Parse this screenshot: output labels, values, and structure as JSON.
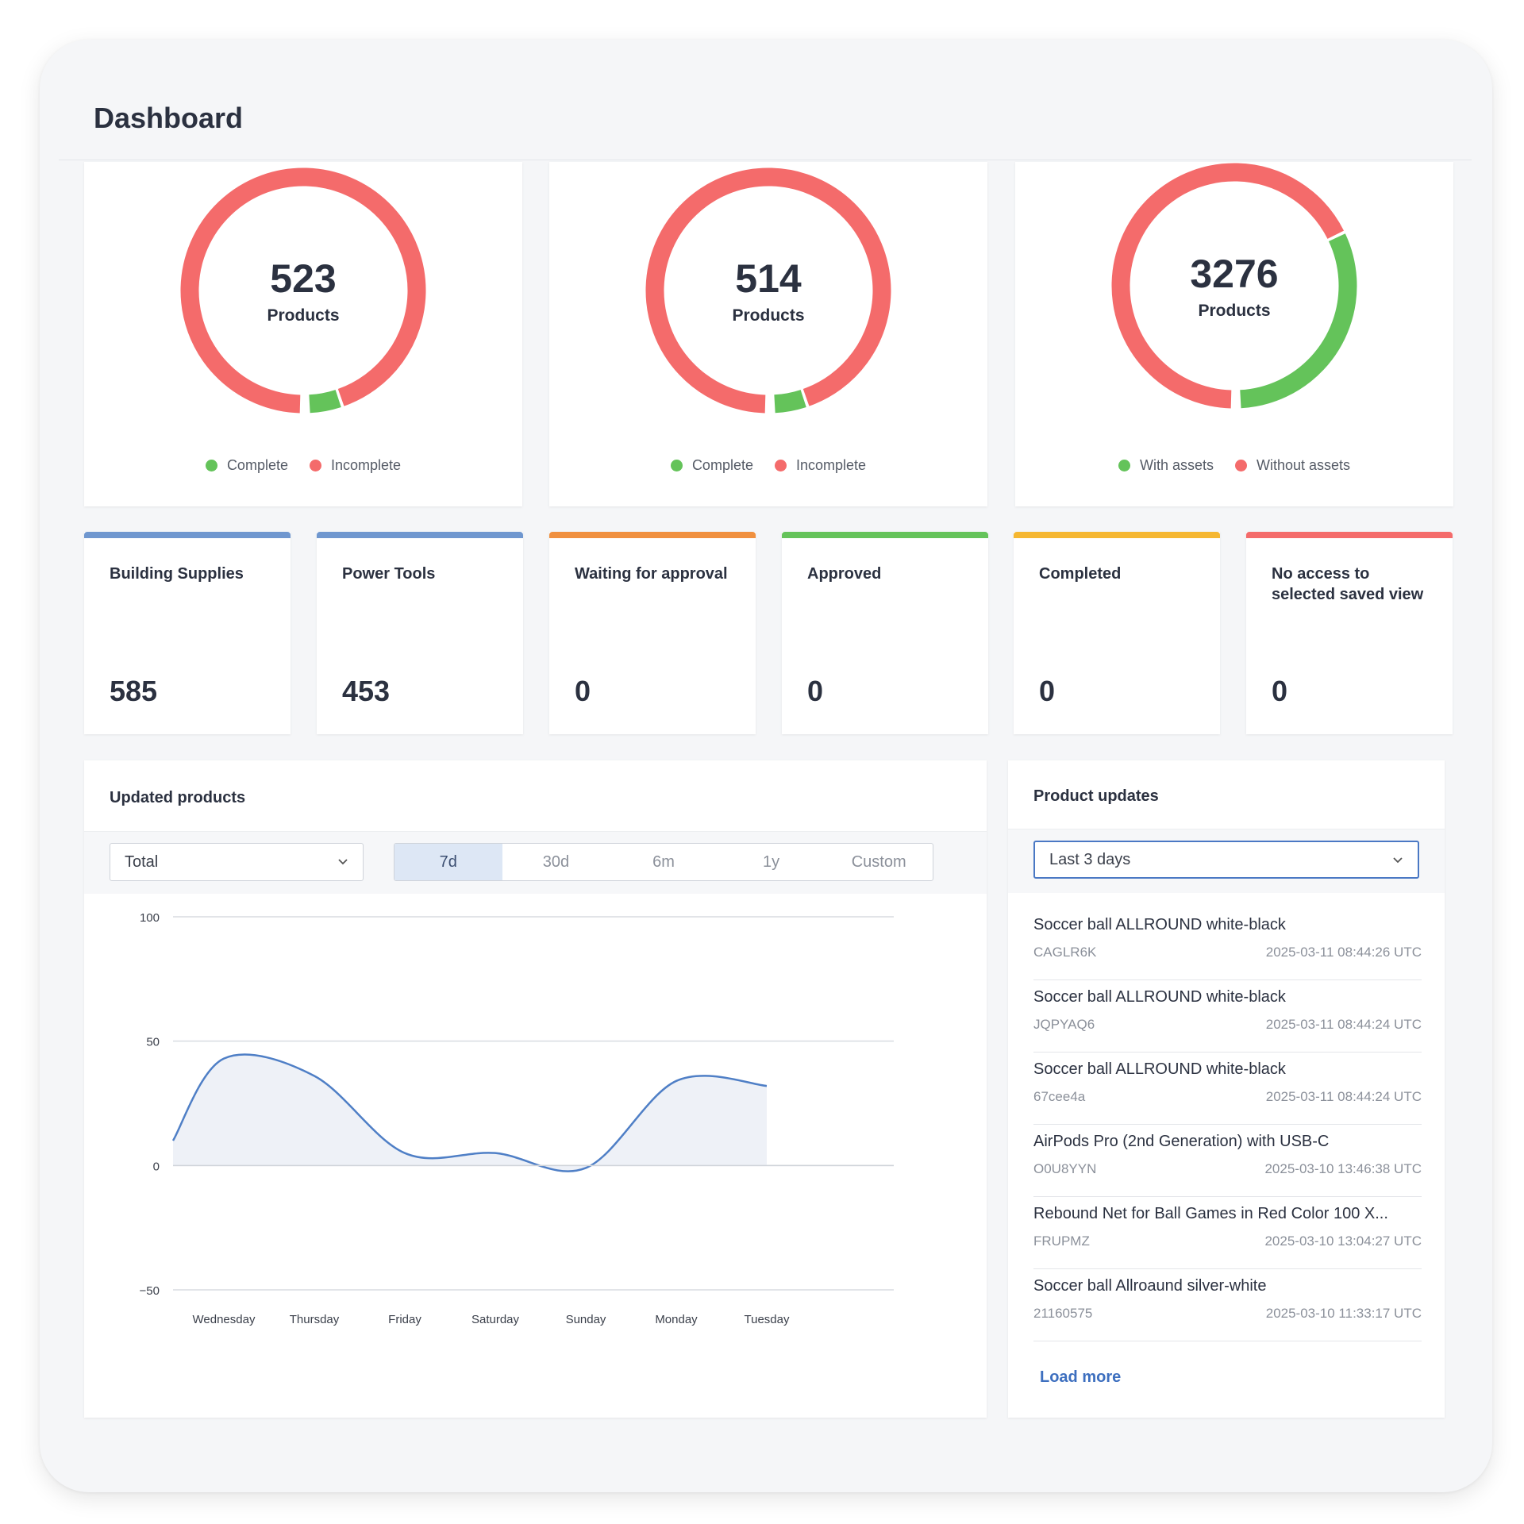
{
  "page": {
    "title": "Dashboard"
  },
  "donuts": [
    {
      "value": "523",
      "label": "Products",
      "complete_fraction": 0.05,
      "legend": [
        "Complete",
        "Incomplete"
      ]
    },
    {
      "value": "514",
      "label": "Products",
      "complete_fraction": 0.05,
      "legend": [
        "Complete",
        "Incomplete"
      ]
    },
    {
      "value": "3276",
      "label": "Products",
      "complete_fraction": 0.32,
      "legend": [
        "With assets",
        "Without assets"
      ]
    }
  ],
  "colors": {
    "green": "#64c35a",
    "red": "#f46b6b",
    "blue": "#6f97cf",
    "orange": "#f0903f",
    "yellow": "#f5b731",
    "line": "#4f7fc6"
  },
  "stats": [
    {
      "label": "Building Supplies",
      "value": "585",
      "color": "#6f97cf"
    },
    {
      "label": "Power Tools",
      "value": "453",
      "color": "#6f97cf"
    },
    {
      "label": "Waiting for approval",
      "value": "0",
      "color": "#f0903f"
    },
    {
      "label": "Approved",
      "value": "0",
      "color": "#64c35a"
    },
    {
      "label": "Completed",
      "value": "0",
      "color": "#f5b731"
    },
    {
      "label": "No access to selected saved view",
      "value": "0",
      "color": "#f46b6b"
    }
  ],
  "updated_products": {
    "title": "Updated products",
    "select_value": "Total",
    "ranges": [
      "7d",
      "30d",
      "6m",
      "1y",
      "Custom"
    ],
    "active_range": "7d"
  },
  "chart_data": {
    "type": "area",
    "x": [
      "Wednesday",
      "Thursday",
      "Friday",
      "Saturday",
      "Sunday",
      "Monday",
      "Tuesday"
    ],
    "series": [
      {
        "values": [
          43,
          36,
          5,
          5,
          -1,
          34,
          32
        ]
      }
    ],
    "start_value": 10,
    "ylim": [
      -50,
      100
    ],
    "yticks": [
      "100",
      "50",
      "0",
      "−50"
    ],
    "grid": true
  },
  "product_updates": {
    "title": "Product updates",
    "select_value": "Last 3 days",
    "items": [
      {
        "name": "Soccer ball ALLROUND white-black",
        "code": "CAGLR6K",
        "time": "2025-03-11 08:44:26 UTC"
      },
      {
        "name": "Soccer ball ALLROUND white-black",
        "code": "JQPYAQ6",
        "time": "2025-03-11 08:44:24 UTC"
      },
      {
        "name": "Soccer ball ALLROUND white-black",
        "code": "67cee4a",
        "time": "2025-03-11 08:44:24 UTC"
      },
      {
        "name": "AirPods Pro (2nd Generation) with USB-C",
        "code": "O0U8YYN",
        "time": "2025-03-10 13:46:38 UTC"
      },
      {
        "name": "Rebound Net for Ball Games in Red Color 100 X...",
        "code": "FRUPMZ",
        "time": "2025-03-10 13:04:27 UTC"
      },
      {
        "name": "Soccer ball Allroaund silver-white",
        "code": "21160575",
        "time": "2025-03-10 11:33:17 UTC"
      }
    ],
    "load_more": "Load more"
  }
}
